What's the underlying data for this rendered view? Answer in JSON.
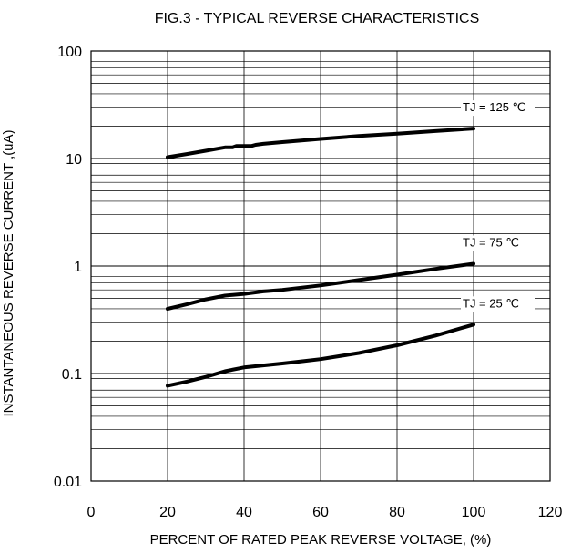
{
  "chart_data": {
    "type": "line",
    "title": "FIG.3 - TYPICAL REVERSE CHARACTERISTICS",
    "xlabel": "PERCENT OF RATED PEAK REVERSE VOLTAGE, (%)",
    "ylabel": "INSTANTANEOUS REVERSE CURRENT ,(uA)",
    "xlim": [
      0,
      120
    ],
    "ylim": [
      0.01,
      100
    ],
    "yscale": "log",
    "grid": true,
    "x_ticks": [
      "0",
      "20",
      "40",
      "60",
      "80",
      "100",
      "120"
    ],
    "y_ticks": [
      "0.01",
      "0.1",
      "1",
      "10",
      "100"
    ],
    "series": [
      {
        "name": "TJ = 125 ℃",
        "x": [
          20,
          25,
          30,
          35,
          37,
          38,
          40,
          42,
          43,
          45,
          50,
          60,
          70,
          80,
          90,
          100
        ],
        "y": [
          10.3,
          11.0,
          11.8,
          12.7,
          12.7,
          13.1,
          13.1,
          13.1,
          13.4,
          13.7,
          14.2,
          15.2,
          16.2,
          17.0,
          18.0,
          19.0
        ]
      },
      {
        "name": "TJ = 75 ℃",
        "x": [
          20,
          25,
          30,
          35,
          40,
          45,
          50,
          60,
          70,
          80,
          90,
          100
        ],
        "y": [
          0.4,
          0.44,
          0.49,
          0.53,
          0.55,
          0.58,
          0.6,
          0.66,
          0.74,
          0.83,
          0.94,
          1.05
        ]
      },
      {
        "name": "TJ = 25 ℃",
        "x": [
          20,
          25,
          30,
          35,
          40,
          45,
          50,
          55,
          60,
          70,
          80,
          90,
          100
        ],
        "y": [
          0.077,
          0.084,
          0.093,
          0.105,
          0.114,
          0.119,
          0.124,
          0.13,
          0.136,
          0.155,
          0.183,
          0.225,
          0.285
        ]
      }
    ]
  }
}
